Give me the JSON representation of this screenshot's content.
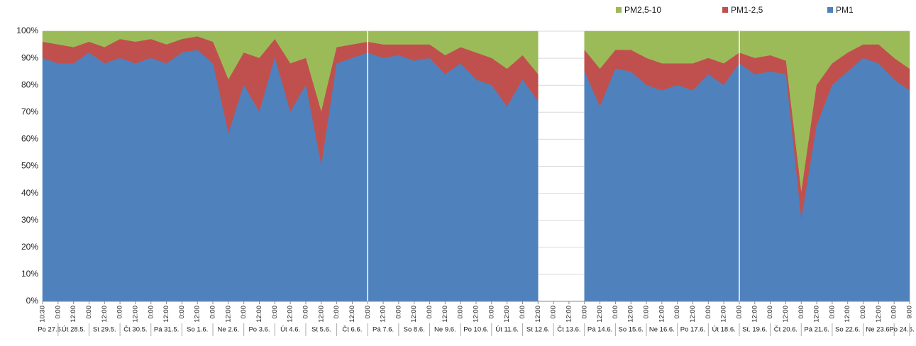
{
  "chart_data": {
    "type": "stacked-area-100",
    "x": [
      "10:30",
      "0:00",
      "12:00",
      "0:00",
      "12:00",
      "0:00",
      "12:00",
      "0:00",
      "12:00",
      "0:00",
      "12:00",
      "0:00",
      "12:00",
      "0:00",
      "12:00",
      "0:00",
      "12:00",
      "0:00",
      "12:00",
      "0:00",
      "12:00",
      "0:00",
      "12:00",
      "0:00",
      "12:00",
      "0:00",
      "12:00",
      "0:00",
      "12:00",
      "0:00",
      "12:00",
      "0:00",
      "12:00",
      "0:00",
      "12:00",
      "0:00",
      "12:00",
      "0:00",
      "12:00",
      "0:00",
      "12:00",
      "0:00",
      "12:00",
      "0:00",
      "12:00",
      "0:00",
      "12:00",
      "0:00",
      "12:00",
      "0:00",
      "12:00",
      "0:00",
      "12:00",
      "0:00",
      "12:00",
      "0:00",
      "9:00"
    ],
    "days": [
      "Po 27.5.",
      "Út 28.5.",
      "St 29.5.",
      "Čt 30.5.",
      "Pá 31.5.",
      "So 1.6.",
      "Ne 2.6.",
      "Po 3.6.",
      "Út 4.6.",
      "St 5.6.",
      "Čt 6.6.",
      "Pá 7.6.",
      "So 8.6.",
      "Ne 9.6.",
      "Po 10.6.",
      "Út 11.6.",
      "St 12.6.",
      "Čt 13.6.",
      "Pá 14.6.",
      "So 15.6.",
      "Ne 16.6.",
      "Po 17.6.",
      "Út 18.6.",
      "St. 19.6.",
      "Čt 20.6.",
      "Pá 21.6.",
      "So 22.6.",
      "Ne 23.6.",
      "Po 24.6."
    ],
    "series": [
      {
        "name": "PM2,5-10",
        "color": "#9bbb59",
        "values": [
          4,
          5,
          6,
          4,
          6,
          3,
          4,
          3,
          5,
          3,
          2,
          4,
          18,
          8,
          10,
          3,
          12,
          10,
          30,
          6,
          5,
          4,
          5,
          5,
          5,
          5,
          9,
          6,
          8,
          10,
          14,
          9,
          16,
          null,
          null,
          7,
          14,
          7,
          7,
          10,
          12,
          12,
          12,
          10,
          12,
          8,
          10,
          9,
          11,
          60,
          20,
          12,
          8,
          5,
          5,
          10,
          14
        ]
      },
      {
        "name": "PM1-2,5",
        "color": "#c0504d",
        "values": [
          6,
          7,
          6,
          4,
          6,
          7,
          8,
          7,
          7,
          5,
          5,
          8,
          20,
          12,
          20,
          7,
          18,
          10,
          20,
          6,
          5,
          4,
          5,
          4,
          6,
          5,
          7,
          6,
          10,
          10,
          14,
          9,
          10,
          null,
          null,
          8,
          14,
          7,
          8,
          10,
          10,
          8,
          10,
          6,
          8,
          4,
          6,
          6,
          5,
          10,
          15,
          8,
          7,
          5,
          7,
          8,
          8
        ]
      },
      {
        "name": "PM1",
        "color": "#4f81bd",
        "values": [
          90,
          88,
          88,
          92,
          88,
          90,
          88,
          90,
          88,
          92,
          93,
          88,
          62,
          80,
          70,
          90,
          70,
          80,
          50,
          88,
          90,
          92,
          90,
          91,
          89,
          90,
          84,
          88,
          82,
          80,
          72,
          82,
          74,
          null,
          null,
          85,
          72,
          86,
          85,
          80,
          78,
          80,
          78,
          84,
          80,
          88,
          84,
          85,
          84,
          30,
          65,
          80,
          85,
          90,
          88,
          82,
          78
        ]
      }
    ],
    "ylim": [
      0,
      100
    ],
    "yticks": [
      {
        "value": 0,
        "label": "0%"
      },
      {
        "value": 10,
        "label": "10%"
      },
      {
        "value": 20,
        "label": "20%"
      },
      {
        "value": 30,
        "label": "30%"
      },
      {
        "value": 40,
        "label": "40%"
      },
      {
        "value": 50,
        "label": "50%"
      },
      {
        "value": 60,
        "label": "60%"
      },
      {
        "value": 70,
        "label": "70%"
      },
      {
        "value": 80,
        "label": "80%"
      },
      {
        "value": 90,
        "label": "90%"
      },
      {
        "value": 100,
        "label": "100%"
      }
    ],
    "grid": true
  }
}
